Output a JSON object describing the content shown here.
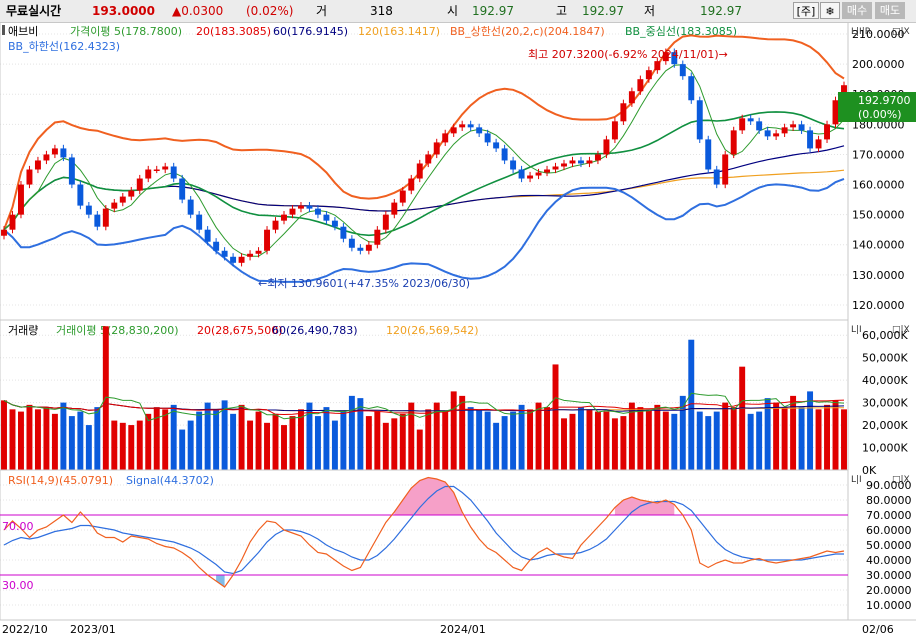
{
  "topbar": {
    "label": "무료실시간",
    "price": "193.0000",
    "change": "▲0.0300",
    "pct": "(0.02%)",
    "vol_label": "거",
    "vol_value": "318",
    "open_label": "시",
    "open_value": "192.97",
    "high_label": "고",
    "high_value": "192.97",
    "low_label": "저",
    "low_value": "192.97",
    "tab_label": "[주]",
    "settings_icon": "gear-icon",
    "buy_label": "매수",
    "sell_label": "매도"
  },
  "colors": {
    "up": "#e00000",
    "down": "#0a5adc",
    "ma5": "#2e9b2e",
    "ma20": "#e00000",
    "ma60": "#000080",
    "ma120": "#f0a020",
    "bb_upper": "#f06020",
    "bb_mid": "#109040",
    "bb_lower": "#2f6fdf",
    "rsi": "#f06020",
    "signal": "#2f6fdf",
    "band": "#cc00cc"
  },
  "price_panel": {
    "stock_name": "애브비",
    "legend": [
      {
        "label": "가격이평 5(178.7800)",
        "color": "#2e9b2e"
      },
      {
        "label": "20(183.3085)",
        "color": "#e00000"
      },
      {
        "label": "60(176.9145)",
        "color": "#000080"
      },
      {
        "label": "120(163.1417)",
        "color": "#f0a020"
      },
      {
        "label": "BB_상한선(20,2,c)(204.1847)",
        "color": "#f06020"
      },
      {
        "label": "BB_중심선(183.3085)",
        "color": "#109040"
      }
    ],
    "legend2": {
      "label": "BB_하한선(162.4323)",
      "color": "#2f6fdf"
    },
    "high_annotation": "최고 207.3200(-6.92% 2024/11/01)→",
    "low_annotation": "←최저 130.9601(+47.35% 2023/06/30)",
    "current_price_label": "192.9700",
    "current_pct_label": "(0.00%)",
    "yticks": [
      "210.0000",
      "200.0000",
      "190.0000",
      "180.0000",
      "170.0000",
      "160.0000",
      "150.0000",
      "140.0000",
      "130.0000",
      "120.0000"
    ],
    "scale_tag": "L|I|R",
    "close_tag": "□|X"
  },
  "volume_panel": {
    "title": "거래량",
    "legend": [
      {
        "label": "거래이평 5(28,830,200)",
        "color": "#2e9b2e"
      },
      {
        "label": "20(28,675,500)",
        "color": "#e00000"
      },
      {
        "label": "60(26,490,783)",
        "color": "#000080"
      },
      {
        "label": "120(26,569,542)",
        "color": "#f0a020"
      }
    ],
    "yticks": [
      "60,000K",
      "50,000K",
      "40,000K",
      "30,000K",
      "20,000K",
      "10,000K",
      "0K"
    ],
    "scale_tag": "L|I",
    "close_tag": "□|X"
  },
  "rsi_panel": {
    "legend": [
      {
        "label": "RSI(14,9)(45.0791)",
        "color": "#f06020"
      },
      {
        "label": "Signal(44.3702)",
        "color": "#2f6fdf"
      }
    ],
    "level_hi": "70.00",
    "level_lo": "30.00",
    "yticks": [
      "90.0000",
      "80.0000",
      "70.0000",
      "60.0000",
      "50.0000",
      "40.0000",
      "30.0000",
      "20.0000",
      "10.0000"
    ],
    "scale_tag": "L|I",
    "close_tag": "□|X"
  },
  "xaxis": {
    "labels": [
      "2022/10",
      "2023/01",
      "2024/01",
      "02/06"
    ]
  },
  "chart_data": [
    {
      "type": "candlestick",
      "name": "price",
      "ylim": [
        115,
        214
      ],
      "current": 192.97,
      "high": 207.32,
      "low": 130.9601,
      "close": [
        145,
        150,
        160,
        165,
        168,
        170,
        172,
        169,
        160,
        153,
        150,
        146,
        152,
        154,
        156,
        158,
        162,
        165,
        165,
        166,
        162,
        155,
        150,
        145,
        141,
        138,
        136,
        134,
        136,
        137,
        138,
        145,
        148,
        150,
        152,
        153,
        152,
        150,
        148,
        146,
        142,
        139,
        138,
        140,
        145,
        150,
        154,
        158,
        162,
        167,
        170,
        174,
        177,
        179,
        180,
        179,
        177,
        174,
        172,
        168,
        165,
        162,
        163,
        164,
        165,
        166,
        167,
        168,
        167,
        168,
        170,
        175,
        181,
        187,
        191,
        195,
        198,
        201,
        204,
        200,
        196,
        188,
        175,
        165,
        160,
        170,
        178,
        182,
        181,
        178,
        176,
        177,
        179,
        180,
        178,
        172,
        175,
        180,
        188,
        193
      ]
    },
    {
      "type": "bar",
      "name": "volume",
      "ylim": [
        0,
        65
      ],
      "unit": "K (thousands)",
      "values": [
        31,
        27,
        26,
        29,
        27,
        28,
        25,
        30,
        24,
        26,
        20,
        28,
        64,
        22,
        21,
        20,
        22,
        25,
        28,
        27,
        29,
        18,
        22,
        26,
        30,
        27,
        31,
        25,
        29,
        22,
        26,
        21,
        25,
        20,
        24,
        27,
        30,
        24,
        28,
        22,
        26,
        33,
        32,
        24,
        26,
        21,
        23,
        25,
        30,
        18,
        27,
        30,
        26,
        35,
        33,
        28,
        27,
        26,
        21,
        24,
        26,
        29,
        27,
        30,
        28,
        47,
        23,
        25,
        28,
        27,
        26,
        26,
        23,
        24,
        30,
        28,
        27,
        29,
        26,
        25,
        33,
        58,
        26,
        24,
        26,
        30,
        28,
        46,
        25,
        26,
        32,
        30,
        28,
        33,
        28,
        35,
        27,
        29,
        31,
        27
      ]
    },
    {
      "type": "line",
      "name": "rsi",
      "ylim": [
        0,
        100
      ],
      "level_hi": 70,
      "level_lo": 30,
      "rsi": [
        60,
        66,
        61,
        55,
        60,
        62,
        66,
        70,
        65,
        72,
        66,
        58,
        55,
        55,
        52,
        56,
        55,
        54,
        51,
        49,
        48,
        45,
        41,
        35,
        30,
        26,
        22,
        30,
        40,
        52,
        60,
        66,
        65,
        60,
        58,
        56,
        50,
        45,
        44,
        40,
        36,
        33,
        35,
        45,
        55,
        65,
        72,
        80,
        88,
        93,
        95,
        94,
        92,
        85,
        72,
        62,
        54,
        48,
        45,
        40,
        35,
        33,
        40,
        45,
        48,
        44,
        42,
        41,
        50,
        56,
        62,
        68,
        75,
        80,
        82,
        80,
        79,
        78,
        80,
        77,
        70,
        60,
        38,
        35,
        38,
        40,
        38,
        38,
        40,
        41,
        39,
        38,
        39,
        40,
        41,
        42,
        44,
        46,
        45,
        46
      ],
      "signal": [
        50,
        53,
        55,
        54,
        55,
        57,
        59,
        60,
        61,
        63,
        63,
        62,
        61,
        60,
        58,
        57,
        56,
        55,
        54,
        53,
        52,
        50,
        48,
        45,
        41,
        37,
        32,
        31,
        33,
        39,
        45,
        52,
        57,
        60,
        60,
        59,
        57,
        54,
        50,
        47,
        45,
        42,
        40,
        40,
        43,
        48,
        54,
        61,
        68,
        75,
        81,
        86,
        89,
        89,
        85,
        80,
        73,
        66,
        58,
        52,
        46,
        42,
        40,
        41,
        43,
        44,
        44,
        44,
        45,
        47,
        50,
        54,
        60,
        66,
        72,
        76,
        78,
        79,
        79,
        79,
        77,
        73,
        66,
        59,
        52,
        47,
        44,
        42,
        41,
        40,
        40,
        40,
        40,
        40,
        40,
        41,
        42,
        43,
        44,
        44
      ]
    }
  ]
}
